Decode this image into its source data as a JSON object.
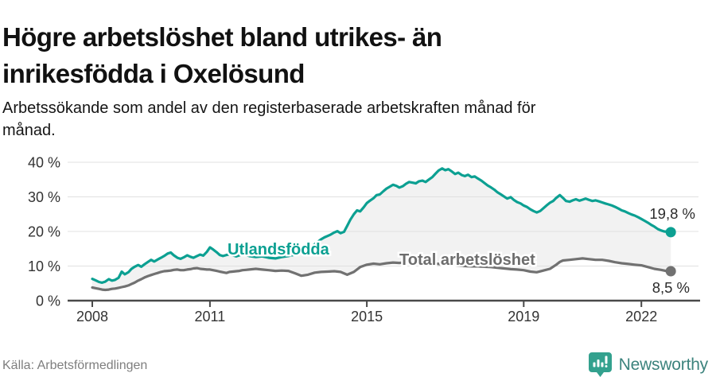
{
  "header": {
    "title_lines": [
      "Högre arbetslöshet bland utrikes- än",
      "inrikesfödda i Oxelösund"
    ],
    "subtitle_lines": [
      "Arbetssökande som andel av den registerbaserade arbetskraften månad för",
      "månad."
    ]
  },
  "footer": {
    "source": "Källa: Arbetsförmedlingen",
    "brand": "Newsworthy",
    "logo_icon": "newsworthy-speech-bubble-barchart-icon"
  },
  "colors": {
    "accent_teal": "#0CA092",
    "series_gray": "#717171",
    "gray_label": "#6D6D6D",
    "gap_fill": "#F2F2F2",
    "gridline": "#E0E0E0",
    "axis": "#4A4A4A",
    "tick_text": "#333333",
    "value_label_text": "#2B2B2B",
    "halo": "#FFFFFF",
    "title_text": "#111111",
    "source_text": "#7E7E7E",
    "logo_icon_fill": "#33A18E",
    "logo_text": "#3C837D"
  },
  "chart_data": {
    "type": "line",
    "title": "Högre arbetslöshet bland utrikes- än inrikesfödda i Oxelösund",
    "subtitle": "Arbetssökande som andel av den registerbaserade arbetskraften månad för månad.",
    "xlabel": "",
    "ylabel": "",
    "ylim": [
      0,
      40
    ],
    "x_domain": [
      2008,
      2022.75
    ],
    "grid": "horizontal",
    "area_between_series": true,
    "y_ticks": {
      "values": [
        0,
        10,
        20,
        30,
        40
      ],
      "labels": [
        "0 %",
        "10 %",
        "20 %",
        "30 %",
        "40 %"
      ]
    },
    "x_ticks": {
      "values": [
        2008,
        2011,
        2015,
        2019,
        2022
      ],
      "labels": [
        "2008",
        "2011",
        "2015",
        "2019",
        "2022"
      ]
    },
    "series": [
      {
        "name": "Utlandsfödda",
        "color": "#0CA092",
        "end_value": 19.8,
        "end_label": "19,8 %",
        "points": [
          [
            2008.0,
            6.3
          ],
          [
            2008.08,
            5.9
          ],
          [
            2008.17,
            5.4
          ],
          [
            2008.25,
            5.2
          ],
          [
            2008.33,
            5.5
          ],
          [
            2008.42,
            6.2
          ],
          [
            2008.5,
            5.8
          ],
          [
            2008.58,
            6.0
          ],
          [
            2008.67,
            6.6
          ],
          [
            2008.75,
            8.4
          ],
          [
            2008.83,
            7.6
          ],
          [
            2008.92,
            8.2
          ],
          [
            2009.0,
            9.2
          ],
          [
            2009.08,
            9.8
          ],
          [
            2009.17,
            10.3
          ],
          [
            2009.25,
            9.8
          ],
          [
            2009.33,
            10.5
          ],
          [
            2009.42,
            11.2
          ],
          [
            2009.5,
            11.8
          ],
          [
            2009.58,
            11.3
          ],
          [
            2009.67,
            11.9
          ],
          [
            2009.75,
            12.4
          ],
          [
            2009.83,
            12.9
          ],
          [
            2009.92,
            13.6
          ],
          [
            2010.0,
            13.9
          ],
          [
            2010.08,
            13.1
          ],
          [
            2010.17,
            12.4
          ],
          [
            2010.25,
            12.1
          ],
          [
            2010.33,
            12.5
          ],
          [
            2010.42,
            13.1
          ],
          [
            2010.5,
            12.7
          ],
          [
            2010.58,
            12.4
          ],
          [
            2010.67,
            12.9
          ],
          [
            2010.75,
            13.3
          ],
          [
            2010.83,
            13.0
          ],
          [
            2010.92,
            14.1
          ],
          [
            2011.0,
            15.4
          ],
          [
            2011.08,
            14.8
          ],
          [
            2011.17,
            14.0
          ],
          [
            2011.25,
            13.2
          ],
          [
            2011.33,
            12.9
          ],
          [
            2011.42,
            13.2
          ],
          [
            2011.5,
            13.4
          ],
          [
            2011.58,
            13.1
          ],
          [
            2011.67,
            12.8
          ],
          [
            2011.75,
            13.1
          ],
          [
            2011.83,
            13.5
          ],
          [
            2011.92,
            13.2
          ],
          [
            2012.0,
            12.9
          ],
          [
            2012.17,
            12.6
          ],
          [
            2012.33,
            12.8
          ],
          [
            2012.5,
            12.4
          ],
          [
            2012.67,
            12.2
          ],
          [
            2012.83,
            12.6
          ],
          [
            2013.0,
            12.9
          ],
          [
            2013.17,
            13.3
          ],
          [
            2013.33,
            13.8
          ],
          [
            2013.5,
            14.9
          ],
          [
            2013.67,
            16.3
          ],
          [
            2013.83,
            17.7
          ],
          [
            2013.92,
            18.3
          ],
          [
            2014.0,
            18.7
          ],
          [
            2014.08,
            19.1
          ],
          [
            2014.17,
            19.7
          ],
          [
            2014.25,
            20.1
          ],
          [
            2014.33,
            19.5
          ],
          [
            2014.42,
            19.9
          ],
          [
            2014.5,
            21.6
          ],
          [
            2014.58,
            23.4
          ],
          [
            2014.67,
            25.0
          ],
          [
            2014.75,
            26.1
          ],
          [
            2014.83,
            25.8
          ],
          [
            2014.92,
            27.0
          ],
          [
            2015.0,
            28.2
          ],
          [
            2015.08,
            28.9
          ],
          [
            2015.17,
            29.6
          ],
          [
            2015.25,
            30.5
          ],
          [
            2015.33,
            30.7
          ],
          [
            2015.42,
            31.6
          ],
          [
            2015.5,
            32.4
          ],
          [
            2015.58,
            32.9
          ],
          [
            2015.67,
            33.5
          ],
          [
            2015.75,
            33.2
          ],
          [
            2015.83,
            32.7
          ],
          [
            2015.92,
            33.1
          ],
          [
            2016.0,
            33.8
          ],
          [
            2016.08,
            34.3
          ],
          [
            2016.17,
            34.1
          ],
          [
            2016.25,
            33.9
          ],
          [
            2016.33,
            34.5
          ],
          [
            2016.42,
            34.7
          ],
          [
            2016.5,
            34.3
          ],
          [
            2016.58,
            35.0
          ],
          [
            2016.67,
            35.7
          ],
          [
            2016.75,
            36.7
          ],
          [
            2016.83,
            37.6
          ],
          [
            2016.92,
            38.2
          ],
          [
            2017.0,
            37.7
          ],
          [
            2017.08,
            38.0
          ],
          [
            2017.17,
            37.3
          ],
          [
            2017.25,
            36.6
          ],
          [
            2017.33,
            37.0
          ],
          [
            2017.42,
            36.3
          ],
          [
            2017.5,
            36.0
          ],
          [
            2017.58,
            36.4
          ],
          [
            2017.67,
            35.7
          ],
          [
            2017.75,
            35.9
          ],
          [
            2017.83,
            35.3
          ],
          [
            2017.92,
            34.7
          ],
          [
            2018.0,
            34.0
          ],
          [
            2018.08,
            33.3
          ],
          [
            2018.17,
            32.7
          ],
          [
            2018.25,
            32.1
          ],
          [
            2018.33,
            31.3
          ],
          [
            2018.42,
            30.7
          ],
          [
            2018.5,
            30.1
          ],
          [
            2018.58,
            29.5
          ],
          [
            2018.67,
            29.9
          ],
          [
            2018.75,
            29.1
          ],
          [
            2018.83,
            28.5
          ],
          [
            2018.92,
            28.1
          ],
          [
            2019.0,
            27.5
          ],
          [
            2019.08,
            27.1
          ],
          [
            2019.17,
            26.4
          ],
          [
            2019.25,
            25.9
          ],
          [
            2019.33,
            25.5
          ],
          [
            2019.42,
            25.9
          ],
          [
            2019.5,
            26.7
          ],
          [
            2019.58,
            27.5
          ],
          [
            2019.67,
            28.3
          ],
          [
            2019.75,
            28.8
          ],
          [
            2019.83,
            29.7
          ],
          [
            2019.92,
            30.5
          ],
          [
            2020.0,
            29.7
          ],
          [
            2020.08,
            28.8
          ],
          [
            2020.17,
            28.6
          ],
          [
            2020.25,
            29.0
          ],
          [
            2020.33,
            29.3
          ],
          [
            2020.42,
            28.9
          ],
          [
            2020.5,
            29.2
          ],
          [
            2020.58,
            29.5
          ],
          [
            2020.67,
            29.1
          ],
          [
            2020.75,
            28.8
          ],
          [
            2020.83,
            29.0
          ],
          [
            2020.92,
            28.7
          ],
          [
            2021.0,
            28.4
          ],
          [
            2021.08,
            28.1
          ],
          [
            2021.17,
            27.8
          ],
          [
            2021.25,
            27.5
          ],
          [
            2021.33,
            27.1
          ],
          [
            2021.42,
            26.6
          ],
          [
            2021.5,
            26.1
          ],
          [
            2021.58,
            25.8
          ],
          [
            2021.67,
            25.3
          ],
          [
            2021.75,
            24.9
          ],
          [
            2021.83,
            24.6
          ],
          [
            2021.92,
            24.1
          ],
          [
            2022.0,
            23.6
          ],
          [
            2022.08,
            23.1
          ],
          [
            2022.17,
            22.5
          ],
          [
            2022.25,
            21.9
          ],
          [
            2022.33,
            21.4
          ],
          [
            2022.42,
            20.7
          ],
          [
            2022.5,
            20.3
          ],
          [
            2022.58,
            20.0
          ],
          [
            2022.67,
            19.9
          ],
          [
            2022.75,
            19.8
          ]
        ]
      },
      {
        "name": "Total arbetslöshet",
        "color": "#717171",
        "end_value": 8.5,
        "end_label": "8,5 %",
        "points": [
          [
            2008.0,
            3.8
          ],
          [
            2008.08,
            3.6
          ],
          [
            2008.17,
            3.4
          ],
          [
            2008.25,
            3.2
          ],
          [
            2008.33,
            3.1
          ],
          [
            2008.42,
            3.2
          ],
          [
            2008.5,
            3.4
          ],
          [
            2008.58,
            3.5
          ],
          [
            2008.67,
            3.7
          ],
          [
            2008.75,
            3.9
          ],
          [
            2008.83,
            4.1
          ],
          [
            2008.92,
            4.4
          ],
          [
            2009.0,
            4.8
          ],
          [
            2009.08,
            5.2
          ],
          [
            2009.17,
            5.8
          ],
          [
            2009.25,
            6.2
          ],
          [
            2009.33,
            6.7
          ],
          [
            2009.42,
            7.1
          ],
          [
            2009.5,
            7.4
          ],
          [
            2009.58,
            7.7
          ],
          [
            2009.67,
            8.0
          ],
          [
            2009.75,
            8.3
          ],
          [
            2009.83,
            8.5
          ],
          [
            2009.92,
            8.6
          ],
          [
            2010.0,
            8.7
          ],
          [
            2010.08,
            8.9
          ],
          [
            2010.17,
            9.0
          ],
          [
            2010.25,
            8.8
          ],
          [
            2010.33,
            8.8
          ],
          [
            2010.42,
            9.0
          ],
          [
            2010.5,
            9.1
          ],
          [
            2010.58,
            9.3
          ],
          [
            2010.67,
            9.4
          ],
          [
            2010.75,
            9.2
          ],
          [
            2010.83,
            9.1
          ],
          [
            2010.92,
            9.0
          ],
          [
            2011.0,
            9.0
          ],
          [
            2011.08,
            8.8
          ],
          [
            2011.17,
            8.6
          ],
          [
            2011.25,
            8.4
          ],
          [
            2011.33,
            8.2
          ],
          [
            2011.42,
            8.0
          ],
          [
            2011.5,
            8.3
          ],
          [
            2011.58,
            8.4
          ],
          [
            2011.67,
            8.5
          ],
          [
            2011.75,
            8.6
          ],
          [
            2011.83,
            8.8
          ],
          [
            2011.92,
            8.9
          ],
          [
            2012.0,
            9.0
          ],
          [
            2012.17,
            9.2
          ],
          [
            2012.33,
            9.0
          ],
          [
            2012.5,
            8.8
          ],
          [
            2012.67,
            8.6
          ],
          [
            2012.83,
            8.7
          ],
          [
            2013.0,
            8.6
          ],
          [
            2013.17,
            7.9
          ],
          [
            2013.33,
            7.2
          ],
          [
            2013.5,
            7.5
          ],
          [
            2013.67,
            8.1
          ],
          [
            2013.83,
            8.3
          ],
          [
            2014.0,
            8.4
          ],
          [
            2014.17,
            8.5
          ],
          [
            2014.33,
            8.3
          ],
          [
            2014.5,
            7.5
          ],
          [
            2014.67,
            8.3
          ],
          [
            2014.83,
            9.7
          ],
          [
            2015.0,
            10.4
          ],
          [
            2015.17,
            10.7
          ],
          [
            2015.33,
            10.5
          ],
          [
            2015.5,
            10.8
          ],
          [
            2015.67,
            11.0
          ],
          [
            2015.83,
            10.9
          ],
          [
            2016.0,
            11.1
          ],
          [
            2016.17,
            11.3
          ],
          [
            2016.33,
            11.4
          ],
          [
            2016.5,
            11.1
          ],
          [
            2016.67,
            10.8
          ],
          [
            2016.83,
            10.6
          ],
          [
            2017.0,
            10.4
          ],
          [
            2017.17,
            10.2
          ],
          [
            2017.33,
            10.1
          ],
          [
            2017.5,
            10.0
          ],
          [
            2017.67,
            9.9
          ],
          [
            2017.83,
            9.9
          ],
          [
            2018.0,
            9.8
          ],
          [
            2018.17,
            9.7
          ],
          [
            2018.33,
            9.5
          ],
          [
            2018.5,
            9.3
          ],
          [
            2018.67,
            9.1
          ],
          [
            2018.83,
            9.0
          ],
          [
            2019.0,
            8.8
          ],
          [
            2019.17,
            8.4
          ],
          [
            2019.33,
            8.2
          ],
          [
            2019.5,
            8.7
          ],
          [
            2019.67,
            9.2
          ],
          [
            2019.83,
            10.4
          ],
          [
            2019.92,
            11.2
          ],
          [
            2020.0,
            11.6
          ],
          [
            2020.17,
            11.8
          ],
          [
            2020.33,
            12.0
          ],
          [
            2020.5,
            12.2
          ],
          [
            2020.67,
            12.0
          ],
          [
            2020.83,
            11.8
          ],
          [
            2021.0,
            11.8
          ],
          [
            2021.17,
            11.5
          ],
          [
            2021.33,
            11.1
          ],
          [
            2021.5,
            10.8
          ],
          [
            2021.67,
            10.6
          ],
          [
            2021.83,
            10.4
          ],
          [
            2022.0,
            10.2
          ],
          [
            2022.17,
            9.7
          ],
          [
            2022.33,
            9.2
          ],
          [
            2022.5,
            8.9
          ],
          [
            2022.62,
            8.6
          ],
          [
            2022.75,
            8.5
          ]
        ]
      }
    ]
  }
}
